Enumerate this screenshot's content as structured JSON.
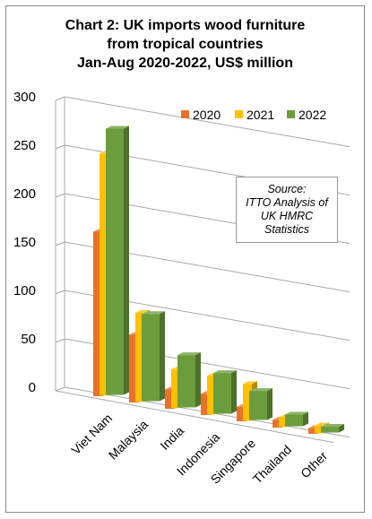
{
  "title_lines": [
    "Chart 2: UK imports wood furniture",
    "from tropical countries",
    "Jan-Aug 2020-2022, US$ million"
  ],
  "source_note_lines": [
    "Source:",
    "ITTO Analysis of",
    "UK HMRC",
    "Statistics"
  ],
  "colors": {
    "2020": "#E8722A",
    "2021": "#FFC000",
    "2022": "#6B9D3C",
    "grid": "#a8a8a8"
  },
  "chart_data": {
    "type": "bar",
    "title": "Chart 2: UK imports wood furniture from tropical countries Jan-Aug 2020-2022, US$ million",
    "categories": [
      "Viet Nam",
      "Malaysia",
      "India",
      "Indonesia",
      "Singapore",
      "Thailand",
      "Other"
    ],
    "series": [
      {
        "name": "2020",
        "values": [
          170,
          70,
          20,
          22,
          15,
          8,
          6
        ]
      },
      {
        "name": "2021",
        "values": [
          250,
          92,
          40,
          40,
          38,
          10,
          8
        ]
      },
      {
        "name": "2022",
        "values": [
          275,
          90,
          54,
          42,
          30,
          12,
          6
        ]
      }
    ],
    "yticks": [
      "0",
      "50",
      "100",
      "150",
      "200",
      "250",
      "300"
    ],
    "ylim": [
      0,
      300
    ],
    "legend_position": "top-right",
    "style": "3d-clustered-column",
    "grid": true
  }
}
